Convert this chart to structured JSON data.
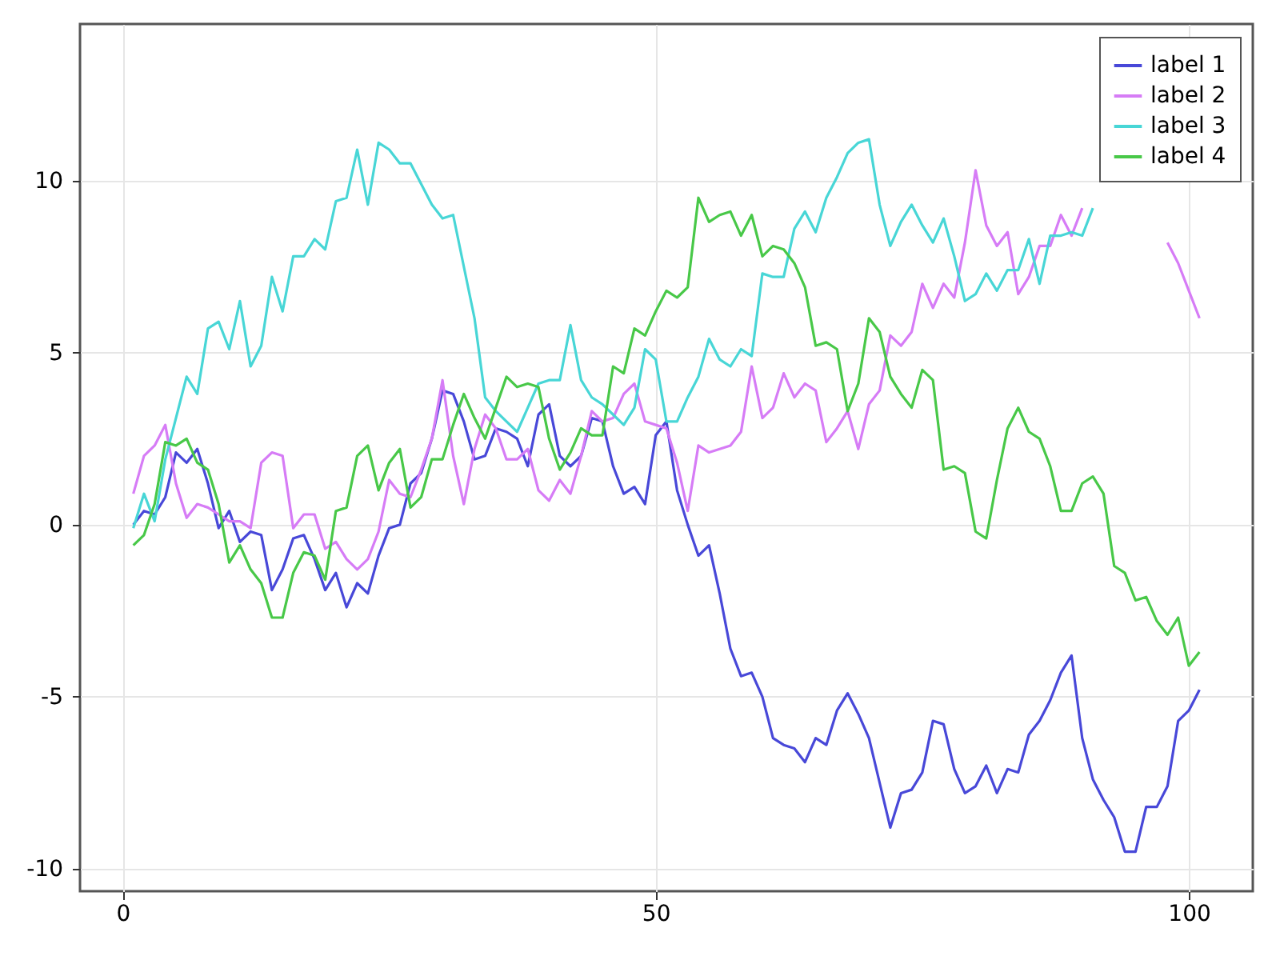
{
  "chart_data": {
    "type": "line",
    "x": [
      1,
      2,
      3,
      4,
      5,
      6,
      7,
      8,
      9,
      10,
      11,
      12,
      13,
      14,
      15,
      16,
      17,
      18,
      19,
      20,
      21,
      22,
      23,
      24,
      25,
      26,
      27,
      28,
      29,
      30,
      31,
      32,
      33,
      34,
      35,
      36,
      37,
      38,
      39,
      40,
      41,
      42,
      43,
      44,
      45,
      46,
      47,
      48,
      49,
      50,
      51,
      52,
      53,
      54,
      55,
      56,
      57,
      58,
      59,
      60,
      61,
      62,
      63,
      64,
      65,
      66,
      67,
      68,
      69,
      70,
      71,
      72,
      73,
      74,
      75,
      76,
      77,
      78,
      79,
      80,
      81,
      82,
      83,
      84,
      85,
      86,
      87,
      88,
      89,
      90,
      91,
      92,
      93,
      94,
      95,
      96,
      97,
      98,
      99,
      100,
      101
    ],
    "series": [
      {
        "name": "label 1",
        "color": "#4848d8",
        "values": [
          0.0,
          0.4,
          0.3,
          0.8,
          2.1,
          1.8,
          2.2,
          1.2,
          -0.1,
          0.4,
          -0.5,
          -0.2,
          -0.3,
          -1.9,
          -1.3,
          -0.4,
          -0.3,
          -1.0,
          -1.9,
          -1.4,
          -2.4,
          -1.7,
          -2.0,
          -0.9,
          -0.1,
          0.0,
          1.2,
          1.5,
          2.5,
          3.9,
          3.8,
          3.0,
          1.9,
          2.0,
          2.8,
          2.7,
          2.5,
          1.7,
          3.2,
          3.5,
          2.0,
          1.7,
          2.0,
          3.1,
          3.0,
          1.7,
          0.9,
          1.1,
          0.6,
          2.6,
          3.0,
          1.0,
          0.0,
          -0.9,
          -0.6,
          -2.0,
          -3.6,
          -4.4,
          -4.3,
          -5.0,
          -6.2,
          -6.4,
          -6.5,
          -6.9,
          -6.2,
          -6.4,
          -5.4,
          -4.9,
          -5.5,
          -6.2,
          -7.5,
          -8.8,
          -7.8,
          -7.7,
          -7.2,
          -5.7,
          -5.8,
          -7.1,
          -7.8,
          -7.6,
          -7.0,
          -7.8,
          -7.1,
          -7.2,
          -6.1,
          -5.7,
          -5.1,
          -4.3,
          -3.8,
          -6.2,
          -7.4,
          -8.0,
          -8.5,
          -9.5,
          -9.5,
          -8.2,
          -8.2,
          -7.6,
          -5.7,
          -5.4,
          -4.8
        ]
      },
      {
        "name": "label 2",
        "color": "#d67cf6",
        "values": [
          0.9,
          2.0,
          2.3,
          2.9,
          1.2,
          0.2,
          0.6,
          0.5,
          0.3,
          0.1,
          0.1,
          -0.1,
          1.8,
          2.1,
          2.0,
          -0.1,
          0.3,
          0.3,
          -0.7,
          -0.5,
          -1.0,
          -1.3,
          -1.0,
          -0.2,
          1.3,
          0.9,
          0.8,
          1.6,
          2.5,
          4.2,
          2.0,
          0.6,
          2.2,
          3.2,
          2.8,
          1.9,
          1.9,
          2.2,
          1.0,
          0.7,
          1.3,
          0.9,
          2.0,
          3.3,
          3.0,
          3.1,
          3.8,
          4.1,
          3.0,
          2.9,
          2.8,
          1.8,
          0.4,
          2.3,
          2.1,
          2.2,
          2.3,
          2.7,
          4.6,
          3.1,
          3.4,
          4.4,
          3.7,
          4.1,
          3.9,
          2.4,
          2.8,
          3.3,
          2.2,
          3.5,
          3.9,
          5.5,
          5.2,
          5.6,
          7.0,
          6.3,
          7.0,
          6.6,
          8.2,
          10.3,
          8.7,
          8.1,
          8.5,
          6.7,
          7.2,
          8.1,
          8.1,
          9.0,
          8.4,
          9.2,
          null,
          null,
          null,
          null,
          null,
          null,
          null,
          8.2,
          7.6,
          6.8,
          6.0
        ]
      },
      {
        "name": "label 3",
        "color": "#48d6d6",
        "values": [
          -0.1,
          0.9,
          0.1,
          1.9,
          3.1,
          4.3,
          3.8,
          5.7,
          5.9,
          5.1,
          6.5,
          4.6,
          5.2,
          7.2,
          6.2,
          7.8,
          7.8,
          8.3,
          8.0,
          9.4,
          9.5,
          10.9,
          9.3,
          11.1,
          10.9,
          10.5,
          10.5,
          9.9,
          9.3,
          8.9,
          9.0,
          7.5,
          6.0,
          3.7,
          3.3,
          3.0,
          2.7,
          3.4,
          4.1,
          4.2,
          4.2,
          5.8,
          4.2,
          3.7,
          3.5,
          3.2,
          2.9,
          3.4,
          5.1,
          4.8,
          3.0,
          3.0,
          3.7,
          4.3,
          5.4,
          4.8,
          4.6,
          5.1,
          4.9,
          7.3,
          7.2,
          7.2,
          8.6,
          9.1,
          8.5,
          9.5,
          10.1,
          10.8,
          11.1,
          11.2,
          9.3,
          8.1,
          8.8,
          9.3,
          8.7,
          8.2,
          8.9,
          7.8,
          6.5,
          6.7,
          7.3,
          6.8,
          7.4,
          7.4,
          8.3,
          7.0,
          8.4,
          8.4,
          8.5,
          8.4,
          9.2,
          null,
          null,
          null,
          null,
          null,
          null,
          null,
          null,
          null,
          null
        ]
      },
      {
        "name": "label 4",
        "color": "#48c848",
        "values": [
          -0.6,
          -0.3,
          0.6,
          2.4,
          2.3,
          2.5,
          1.8,
          1.6,
          0.6,
          -1.1,
          -0.6,
          -1.3,
          -1.7,
          -2.7,
          -2.7,
          -1.4,
          -0.8,
          -0.9,
          -1.6,
          0.4,
          0.5,
          2.0,
          2.3,
          1.0,
          1.8,
          2.2,
          0.5,
          0.8,
          1.9,
          1.9,
          2.9,
          3.8,
          3.1,
          2.5,
          3.4,
          4.3,
          4.0,
          4.1,
          4.0,
          2.5,
          1.6,
          2.1,
          2.8,
          2.6,
          2.6,
          4.6,
          4.4,
          5.7,
          5.5,
          6.2,
          6.8,
          6.6,
          6.9,
          9.5,
          8.8,
          9.0,
          9.1,
          8.4,
          9.0,
          7.8,
          8.1,
          8.0,
          7.6,
          6.9,
          5.2,
          5.3,
          5.1,
          3.3,
          4.1,
          6.0,
          5.6,
          4.3,
          3.8,
          3.4,
          4.5,
          4.2,
          1.6,
          1.7,
          1.5,
          -0.2,
          -0.4,
          1.3,
          2.8,
          3.4,
          2.7,
          2.5,
          1.7,
          0.4,
          0.4,
          1.2,
          1.4,
          0.9,
          -1.2,
          -1.4,
          -2.2,
          -2.1,
          -2.8,
          -3.2,
          -2.7,
          -4.1,
          -3.7
        ]
      }
    ],
    "xlim": [
      -4,
      106
    ],
    "ylim": [
      -10.65,
      14.55
    ],
    "xticks": [
      0,
      50,
      100
    ],
    "yticks": [
      -10,
      -5,
      0,
      5,
      10
    ],
    "grid": true,
    "legend": "top right",
    "line_style": "solid",
    "marker": "none"
  }
}
